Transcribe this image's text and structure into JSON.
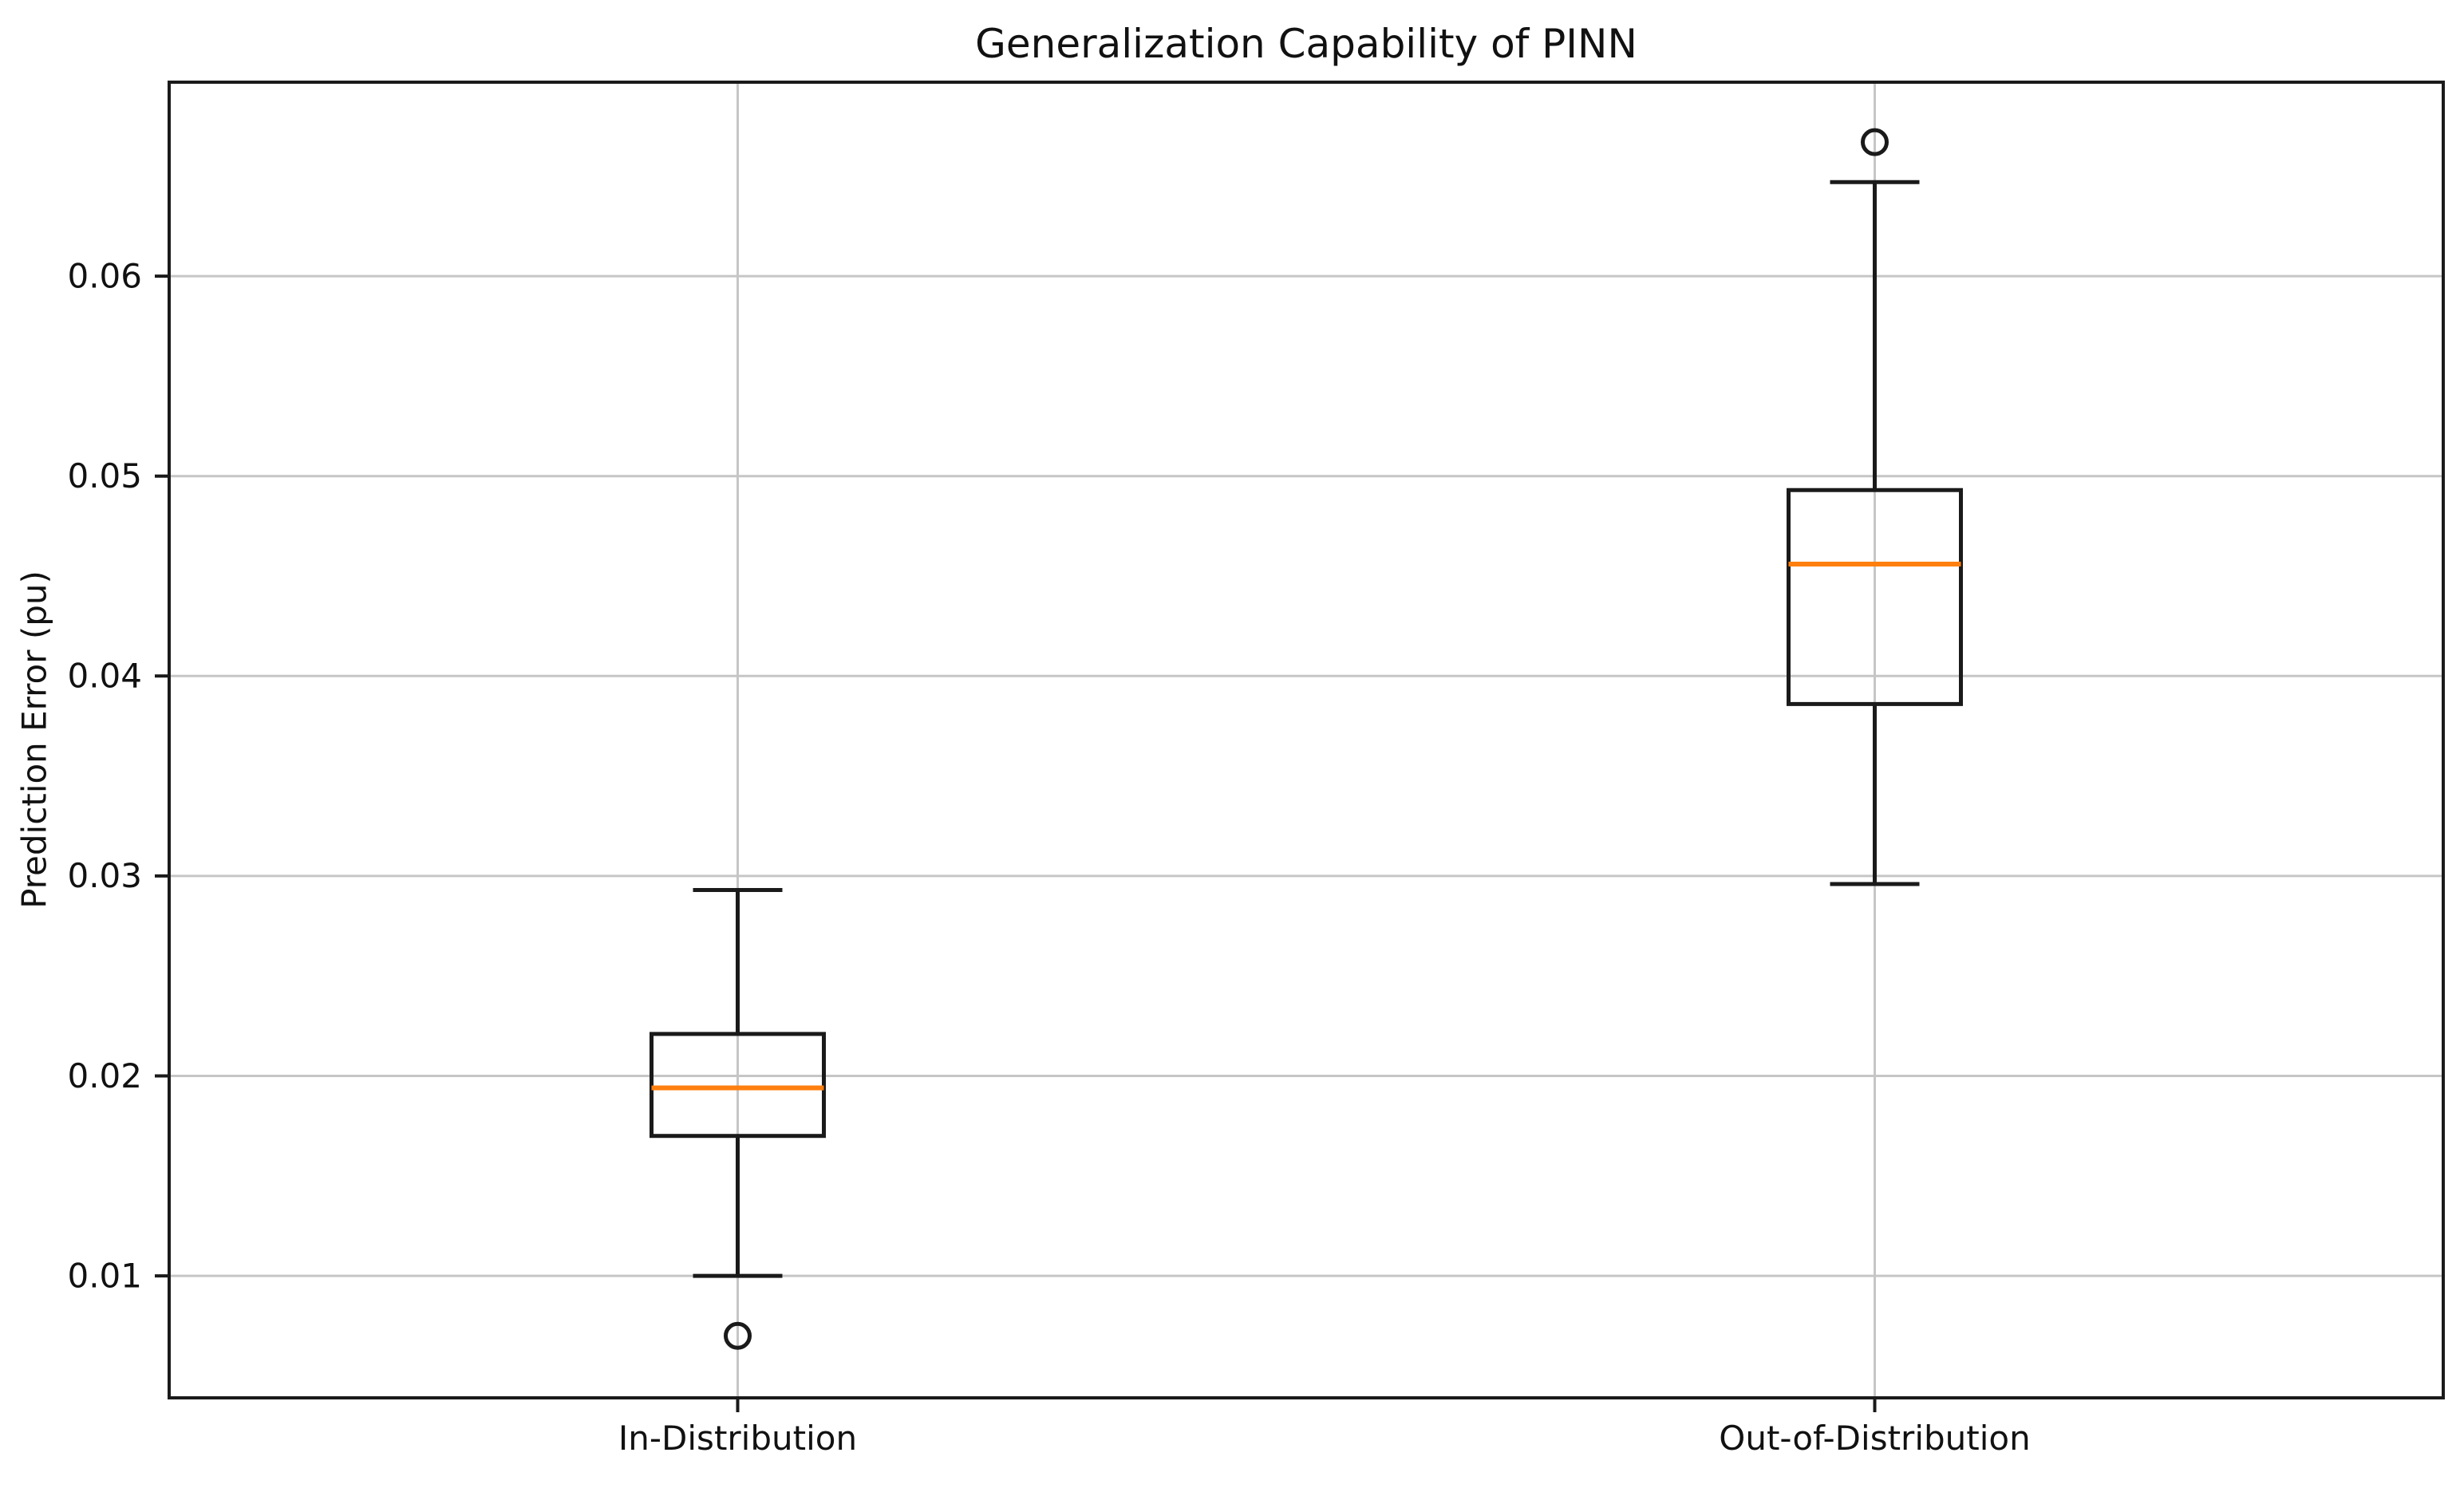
{
  "chart_data": {
    "type": "boxplot",
    "title": "Generalization Capability of PINN",
    "ylabel": "Prediction Error (pu)",
    "xlabel": "",
    "categories": [
      "In-Distribution",
      "Out-of-Distribution"
    ],
    "ytick_labels": [
      "0.01",
      "0.02",
      "0.03",
      "0.04",
      "0.05",
      "0.06"
    ],
    "yticks": [
      0.01,
      0.02,
      0.03,
      0.04,
      0.05,
      0.06
    ],
    "ylim": [
      0.0039,
      0.0697
    ],
    "grid": true,
    "legend": "none",
    "series": [
      {
        "category": "In-Distribution",
        "whisker_low": 0.01,
        "q1": 0.017,
        "median": 0.0194,
        "q3": 0.0221,
        "whisker_high": 0.0293,
        "outliers": [
          0.007
        ]
      },
      {
        "category": "Out-of-Distribution",
        "whisker_low": 0.0296,
        "q1": 0.0386,
        "median": 0.0456,
        "q3": 0.0493,
        "whisker_high": 0.0647,
        "outliers": [
          0.0667
        ]
      }
    ],
    "colors": {
      "box_line": "#1a1a1a",
      "median_line": "#ff7f0e",
      "grid_line": "#c6c6c6",
      "spine": "#1a1a1a",
      "text": "#111111",
      "background": "#ffffff"
    }
  }
}
